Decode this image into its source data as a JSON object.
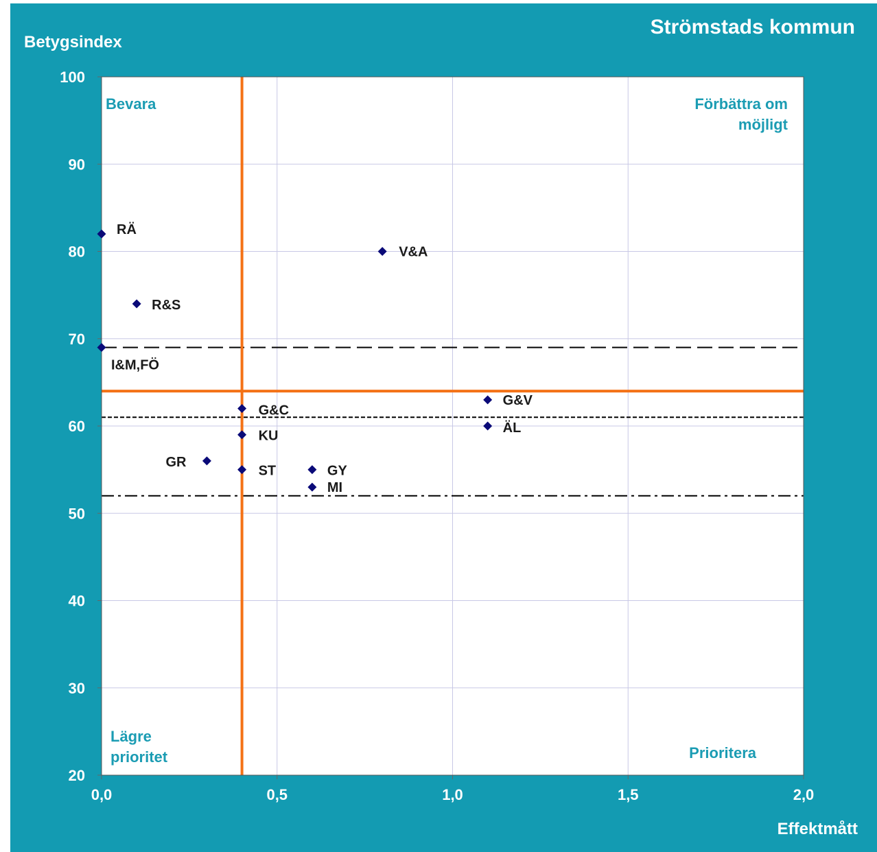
{
  "chart_data": {
    "type": "scatter",
    "title": "Strömstads kommun",
    "xlabel": "Effektmått",
    "ylabel": "Betygsindex",
    "xlim": [
      0.0,
      2.0
    ],
    "ylim": [
      20,
      100
    ],
    "x_ticks": [
      "0,0",
      "0,5",
      "1,0",
      "1,5",
      "2,0"
    ],
    "y_ticks": [
      "20",
      "30",
      "40",
      "50",
      "60",
      "70",
      "80",
      "90",
      "100"
    ],
    "grid": true,
    "points": [
      {
        "label": "RÄ",
        "x": 0.0,
        "y": 82
      },
      {
        "label": "V&A",
        "x": 0.8,
        "y": 80
      },
      {
        "label": "R&S",
        "x": 0.1,
        "y": 74
      },
      {
        "label": "I&M,FÖ",
        "x": 0.0,
        "y": 69
      },
      {
        "label": "G&V",
        "x": 1.1,
        "y": 63
      },
      {
        "label": "G&C",
        "x": 0.4,
        "y": 62
      },
      {
        "label": "ÄL",
        "x": 1.1,
        "y": 60
      },
      {
        "label": "KU",
        "x": 0.4,
        "y": 59
      },
      {
        "label": "GR",
        "x": 0.3,
        "y": 56
      },
      {
        "label": "ST",
        "x": 0.4,
        "y": 55
      },
      {
        "label": "GY",
        "x": 0.6,
        "y": 55
      },
      {
        "label": "MI",
        "x": 0.6,
        "y": 53
      }
    ],
    "reference_lines": {
      "vertical_x": 0.4,
      "horizontal_y": 64,
      "long_dash_y": 69,
      "short_dash_y": 61,
      "dash_dot_y": 52
    },
    "quadrant_labels": {
      "top_left": "Bevara",
      "top_right": [
        "Förbättra om",
        "möjligt"
      ],
      "bottom_left": [
        "Lägre",
        "prioritet"
      ],
      "bottom_right": "Prioritera"
    },
    "colors": {
      "background": "#139bb2",
      "plot_area": "#ffffff",
      "marker": "#0a0a78",
      "reference": "#f47216",
      "quadrant_text": "#1b9cb3",
      "grid": "#c8c8e6"
    }
  }
}
